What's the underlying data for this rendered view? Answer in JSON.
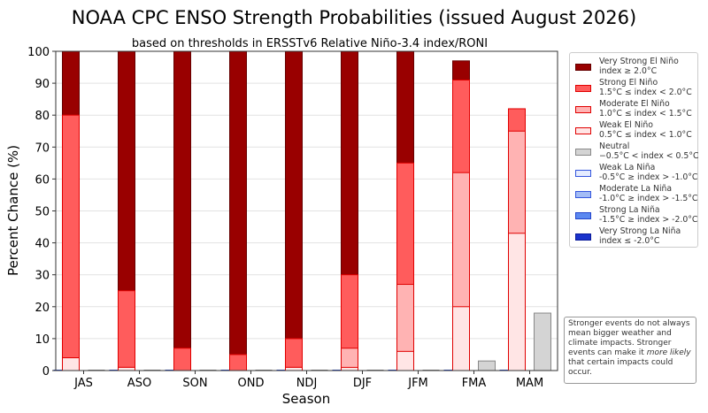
{
  "title": "NOAA CPC ENSO Strength Probabilities (issued August 2026)",
  "subtitle": "based on thresholds in ERSSTv6 Relative Niño-3.4 index/RONI",
  "note": {
    "before": "Stronger events do not always mean bigger weather and climate impacts. Stronger events can make it ",
    "emph": "more likely",
    "after": " that certain impacts could occur."
  },
  "legend": [
    {
      "line1": "Very Strong El Niño",
      "line2": "index ≥ 2.0°C",
      "fill": "#990000",
      "edge": "#660000"
    },
    {
      "line1": "Strong El Niño",
      "line2": "1.5°C ≤ index < 2.0°C",
      "fill": "#ff5c5c",
      "edge": "#e00000"
    },
    {
      "line1": "Moderate El Niño",
      "line2": "1.0°C ≤ index < 1.5°C",
      "fill": "#ffb3b3",
      "edge": "#e00000"
    },
    {
      "line1": "Weak El Niño",
      "line2": "0.5°C ≤ index < 1.0°C",
      "fill": "#ffe5e5",
      "edge": "#e00000"
    },
    {
      "line1": "Neutral",
      "line2": "−0.5°C < index < 0.5°C",
      "fill": "#d4d4d4",
      "edge": "#888888"
    },
    {
      "line1": "Weak La Niña",
      "line2": "-0.5°C ≥ index > -1.0°C",
      "fill": "#e5ecff",
      "edge": "#3355dd"
    },
    {
      "line1": "Moderate La Niña",
      "line2": "-1.0°C ≥ index > -1.5°C",
      "fill": "#a3bcf5",
      "edge": "#3355dd"
    },
    {
      "line1": "Strong La Niña",
      "line2": "-1.5°C ≥ index > -2.0°C",
      "fill": "#5b88f0",
      "edge": "#2244cc"
    },
    {
      "line1": "Very Strong La Niña",
      "line2": "index ≤ -2.0°C",
      "fill": "#1a33cc",
      "edge": "#0a1a99"
    }
  ],
  "chart_data": {
    "type": "bar",
    "title": "NOAA CPC ENSO Strength Probabilities (issued August 2026)",
    "subtitle": "based on thresholds in ERSSTv6 Relative Niño-3.4 index/RONI",
    "xlabel": "Season",
    "ylabel": "Percent Chance (%)",
    "ylim": [
      0,
      100
    ],
    "yticks": [
      0,
      10,
      20,
      30,
      40,
      50,
      60,
      70,
      80,
      90,
      100
    ],
    "grid": true,
    "legend_position": "right",
    "categories": [
      "JAS",
      "ASO",
      "SON",
      "OND",
      "NDJ",
      "DJF",
      "JFM",
      "FMA",
      "MAM"
    ],
    "layout_note": "Left bar per season: La Niña categories (0) + El Niño cumulative exceedance (Weak, Moderate, Strong, Very Strong nested from 0). Right bar: Neutral probability.",
    "el_nino_cumulative": [
      {
        "season": "JAS",
        "weak": 100,
        "moderate": 100,
        "strong": 100,
        "very_strong": 100
      },
      {
        "season": "ASO",
        "weak": 100,
        "moderate": 100,
        "strong": 100,
        "very_strong": 100
      },
      {
        "season": "SON",
        "weak": 100,
        "moderate": 100,
        "strong": 100,
        "very_strong": 100
      },
      {
        "season": "OND",
        "weak": 100,
        "moderate": 100,
        "strong": 100,
        "very_strong": 100
      },
      {
        "season": "NDJ",
        "weak": 100,
        "moderate": 100,
        "strong": 100,
        "very_strong": 100
      },
      {
        "season": "DJF",
        "weak": 100,
        "moderate": 100,
        "strong": 100,
        "very_strong": 100
      },
      {
        "season": "JFM",
        "weak": 100,
        "moderate": 100,
        "strong": 100,
        "very_strong": 100
      },
      {
        "season": "FMA",
        "weak": 97,
        "moderate": 97,
        "strong": 97,
        "very_strong": 0
      },
      {
        "season": "MAM",
        "weak": 82,
        "moderate": 82,
        "strong": 0,
        "very_strong": 0
      }
    ],
    "series": [
      {
        "name": "Weak El Niño",
        "values": [
          4,
          1,
          0,
          0,
          1,
          1,
          6,
          20,
          43
        ]
      },
      {
        "name": "Moderate El Niño",
        "values": [
          4,
          1,
          0,
          0,
          1,
          7,
          27,
          62,
          75
        ]
      },
      {
        "name": "Strong El Niño",
        "values": [
          80,
          25,
          7,
          5,
          10,
          30,
          65,
          91,
          82
        ]
      },
      {
        "name": "Very Strong El Niño",
        "values": [
          100,
          100,
          100,
          100,
          100,
          100,
          100,
          97,
          0
        ]
      },
      {
        "name": "Neutral",
        "values": [
          0,
          0,
          0,
          0,
          0,
          0,
          0,
          3,
          18
        ]
      }
    ]
  }
}
